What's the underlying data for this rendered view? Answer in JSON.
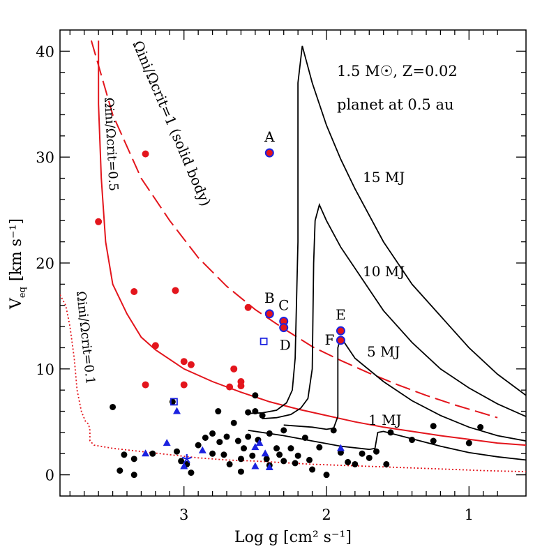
{
  "chart_data": {
    "type": "scatter",
    "x_axis": {
      "label": "Log g [cm² s⁻¹]",
      "range": [
        3.87,
        0.6
      ],
      "ticks": [
        "3",
        "2",
        "1"
      ],
      "tick_values": [
        3,
        2,
        1
      ]
    },
    "y_axis": {
      "label": "Veq [km s⁻¹]",
      "label_main": "V",
      "label_sub": "eq",
      "label_units": "[km s⁻¹]",
      "range": [
        -2,
        42
      ],
      "ticks": [
        "0",
        "10",
        "20",
        "30",
        "40"
      ],
      "tick_values": [
        0,
        10,
        20,
        30,
        40
      ]
    },
    "header": {
      "star_line": "1.5 M☉, Z=0.02",
      "planet_line": "planet at 0.5 au"
    },
    "curve_labels": {
      "omega_1": "Ωini/Ωcrit=1 (solid body)",
      "omega_05": "Ωini/Ωcrit=0.5",
      "omega_01": "Ωini/Ωcrit=0.1",
      "m15": "15 MJ",
      "m10": "10 MJ",
      "m5": "5 MJ",
      "m1": "1 MJ"
    },
    "red_curves": [
      {
        "name": "omega-1-solid-body",
        "style": "dashed",
        "points": [
          [
            3.65,
            41
          ],
          [
            3.5,
            34
          ],
          [
            3.3,
            28
          ],
          [
            3.1,
            24
          ],
          [
            2.9,
            20.5
          ],
          [
            2.7,
            17.8
          ],
          [
            2.5,
            15.6
          ],
          [
            2.3,
            13.8
          ],
          [
            2.1,
            12.1
          ],
          [
            1.9,
            10.8
          ],
          [
            1.7,
            9.6
          ],
          [
            1.5,
            8.5
          ],
          [
            1.3,
            7.5
          ],
          [
            1.1,
            6.6
          ],
          [
            0.9,
            5.8
          ],
          [
            0.8,
            5.4
          ]
        ]
      },
      {
        "name": "omega-0.5",
        "style": "solid",
        "points": [
          [
            3.6,
            41
          ],
          [
            3.6,
            35
          ],
          [
            3.58,
            28
          ],
          [
            3.55,
            22
          ],
          [
            3.5,
            18
          ],
          [
            3.4,
            15.2
          ],
          [
            3.3,
            13
          ],
          [
            3.2,
            11.8
          ],
          [
            3.0,
            10
          ],
          [
            2.8,
            8.8
          ],
          [
            2.6,
            7.8
          ],
          [
            2.4,
            6.9
          ],
          [
            2.2,
            6.2
          ],
          [
            2.0,
            5.6
          ],
          [
            1.8,
            5
          ],
          [
            1.6,
            4.5
          ],
          [
            1.4,
            4.1
          ],
          [
            1.2,
            3.7
          ],
          [
            1.0,
            3.35
          ],
          [
            0.8,
            3.0
          ],
          [
            0.6,
            2.8
          ]
        ]
      },
      {
        "name": "omega-0.1",
        "style": "dotted",
        "points": [
          [
            3.87,
            17
          ],
          [
            3.83,
            16
          ],
          [
            3.8,
            14
          ],
          [
            3.77,
            11
          ],
          [
            3.75,
            8
          ],
          [
            3.72,
            6
          ],
          [
            3.69,
            5
          ],
          [
            3.67,
            4.8
          ],
          [
            3.66,
            4.2
          ],
          [
            3.66,
            3.2
          ],
          [
            3.63,
            2.8
          ],
          [
            3.5,
            2.5
          ],
          [
            3.3,
            2.2
          ],
          [
            3.1,
            1.9
          ],
          [
            2.9,
            1.6
          ],
          [
            2.7,
            1.4
          ],
          [
            2.5,
            1.3
          ],
          [
            2.3,
            1.15
          ],
          [
            2.1,
            1.0
          ],
          [
            1.9,
            0.9
          ],
          [
            1.7,
            0.8
          ],
          [
            1.5,
            0.7
          ],
          [
            1.3,
            0.6
          ],
          [
            1.1,
            0.5
          ],
          [
            0.9,
            0.4
          ],
          [
            0.6,
            0.3
          ]
        ]
      }
    ],
    "black_curves": [
      {
        "name": "15 MJ",
        "points": [
          [
            2.55,
            5.8
          ],
          [
            2.45,
            5.85
          ],
          [
            2.35,
            6.1
          ],
          [
            2.28,
            6.8
          ],
          [
            2.24,
            8
          ],
          [
            2.22,
            11
          ],
          [
            2.2,
            22
          ],
          [
            2.2,
            37
          ],
          [
            2.17,
            40.5
          ],
          [
            2.1,
            37
          ],
          [
            2.0,
            33
          ],
          [
            1.9,
            29.8
          ],
          [
            1.8,
            27
          ],
          [
            1.6,
            22
          ],
          [
            1.4,
            18
          ],
          [
            1.2,
            15
          ],
          [
            1.0,
            12
          ],
          [
            0.8,
            9.5
          ],
          [
            0.6,
            7.5
          ]
        ]
      },
      {
        "name": "10 MJ",
        "points": [
          [
            2.45,
            5.3
          ],
          [
            2.35,
            5.4
          ],
          [
            2.25,
            5.7
          ],
          [
            2.18,
            6.3
          ],
          [
            2.13,
            7.2
          ],
          [
            2.1,
            10
          ],
          [
            2.09,
            20
          ],
          [
            2.08,
            24
          ],
          [
            2.05,
            25.5
          ],
          [
            2.0,
            24
          ],
          [
            1.9,
            21.5
          ],
          [
            1.8,
            19.5
          ],
          [
            1.6,
            15.5
          ],
          [
            1.4,
            12.5
          ],
          [
            1.2,
            10
          ],
          [
            1.0,
            8.2
          ],
          [
            0.8,
            6.7
          ],
          [
            0.6,
            5.5
          ]
        ]
      },
      {
        "name": "5 MJ",
        "points": [
          [
            2.3,
            4.7
          ],
          [
            2.2,
            4.6
          ],
          [
            2.1,
            4.5
          ],
          [
            2.0,
            4.3
          ],
          [
            1.95,
            4.4
          ],
          [
            1.92,
            5.5
          ],
          [
            1.92,
            12
          ],
          [
            1.9,
            13
          ],
          [
            1.8,
            11
          ],
          [
            1.6,
            8.8
          ],
          [
            1.4,
            7.0
          ],
          [
            1.2,
            5.6
          ],
          [
            1.0,
            4.5
          ],
          [
            0.8,
            3.7
          ],
          [
            0.6,
            3.2
          ]
        ]
      },
      {
        "name": "1 MJ",
        "points": [
          [
            2.55,
            4.2
          ],
          [
            2.3,
            3.7
          ],
          [
            2.1,
            3.2
          ],
          [
            1.9,
            2.7
          ],
          [
            1.7,
            2.4
          ],
          [
            1.66,
            2.5
          ],
          [
            1.64,
            4
          ],
          [
            1.6,
            4.1
          ],
          [
            1.4,
            3.4
          ],
          [
            1.2,
            2.7
          ],
          [
            1.0,
            2.1
          ],
          [
            0.8,
            1.7
          ],
          [
            0.6,
            1.4
          ]
        ]
      }
    ],
    "red_points": [
      [
        3.6,
        23.9
      ],
      [
        3.27,
        30.3
      ],
      [
        3.35,
        17.3
      ],
      [
        3.06,
        17.4
      ],
      [
        3.2,
        12.2
      ],
      [
        3.0,
        10.7
      ],
      [
        2.95,
        10.4
      ],
      [
        2.65,
        10.0
      ],
      [
        2.6,
        8.8
      ],
      [
        2.6,
        8.4
      ],
      [
        2.68,
        8.3
      ],
      [
        3.0,
        8.5
      ],
      [
        3.27,
        8.5
      ],
      [
        2.55,
        15.8
      ]
    ],
    "labeled_points": [
      {
        "label": "A",
        "x": 2.4,
        "y": 30.4
      },
      {
        "label": "B",
        "x": 2.4,
        "y": 15.2
      },
      {
        "label": "C",
        "x": 2.3,
        "y": 14.5
      },
      {
        "label": "D",
        "x": 2.3,
        "y": 13.9
      },
      {
        "label": "E",
        "x": 1.9,
        "y": 13.6
      },
      {
        "label": "F",
        "x": 1.9,
        "y": 12.7
      }
    ],
    "blue_squares": [
      [
        2.44,
        12.6
      ],
      [
        3.07,
        6.9
      ]
    ],
    "blue_triangles": [
      [
        3.05,
        6.0
      ],
      [
        3.12,
        3.0
      ],
      [
        3.27,
        2.0
      ],
      [
        2.87,
        2.3
      ],
      [
        2.5,
        2.6
      ],
      [
        2.47,
        3.0
      ],
      [
        2.43,
        2.0
      ],
      [
        2.4,
        0.7
      ],
      [
        2.5,
        0.8
      ],
      [
        1.9,
        2.5
      ],
      [
        3.0,
        0.8
      ]
    ],
    "blue_stars": [
      [
        2.98,
        1.5
      ]
    ],
    "black_points": [
      [
        3.5,
        6.4
      ],
      [
        3.45,
        0.4
      ],
      [
        3.42,
        1.9
      ],
      [
        3.35,
        0.0
      ],
      [
        3.35,
        1.5
      ],
      [
        3.22,
        2.0
      ],
      [
        3.08,
        6.9
      ],
      [
        3.05,
        2.2
      ],
      [
        3.02,
        1.3
      ],
      [
        2.98,
        1.0
      ],
      [
        2.95,
        0.2
      ],
      [
        2.9,
        2.8
      ],
      [
        2.85,
        3.5
      ],
      [
        2.8,
        3.9
      ],
      [
        2.8,
        2.0
      ],
      [
        2.76,
        6.0
      ],
      [
        2.75,
        3.1
      ],
      [
        2.72,
        1.9
      ],
      [
        2.7,
        3.6
      ],
      [
        2.68,
        1.0
      ],
      [
        2.65,
        4.9
      ],
      [
        2.62,
        3.2
      ],
      [
        2.6,
        1.5
      ],
      [
        2.6,
        0.3
      ],
      [
        2.58,
        2.5
      ],
      [
        2.55,
        5.9
      ],
      [
        2.55,
        3.6
      ],
      [
        2.52,
        1.8
      ],
      [
        2.5,
        7.5
      ],
      [
        2.5,
        6.0
      ],
      [
        2.48,
        3.3
      ],
      [
        2.45,
        5.6
      ],
      [
        2.42,
        1.5
      ],
      [
        2.4,
        3.9
      ],
      [
        2.4,
        0.9
      ],
      [
        2.35,
        2.5
      ],
      [
        2.33,
        1.9
      ],
      [
        2.3,
        4.2
      ],
      [
        2.3,
        1.3
      ],
      [
        2.25,
        2.5
      ],
      [
        2.22,
        1.1
      ],
      [
        2.2,
        1.8
      ],
      [
        2.15,
        3.5
      ],
      [
        2.12,
        1.4
      ],
      [
        2.1,
        0.5
      ],
      [
        2.05,
        2.6
      ],
      [
        2.0,
        0.0
      ],
      [
        1.95,
        4.2
      ],
      [
        1.9,
        2.1
      ],
      [
        1.85,
        1.2
      ],
      [
        1.8,
        1.0
      ],
      [
        1.75,
        2.0
      ],
      [
        1.7,
        1.6
      ],
      [
        1.65,
        2.2
      ],
      [
        1.55,
        4.0
      ],
      [
        1.4,
        3.3
      ],
      [
        1.25,
        4.6
      ],
      [
        1.25,
        3.2
      ],
      [
        1.0,
        3.0
      ],
      [
        0.92,
        4.5
      ],
      [
        1.58,
        1.0
      ]
    ]
  }
}
